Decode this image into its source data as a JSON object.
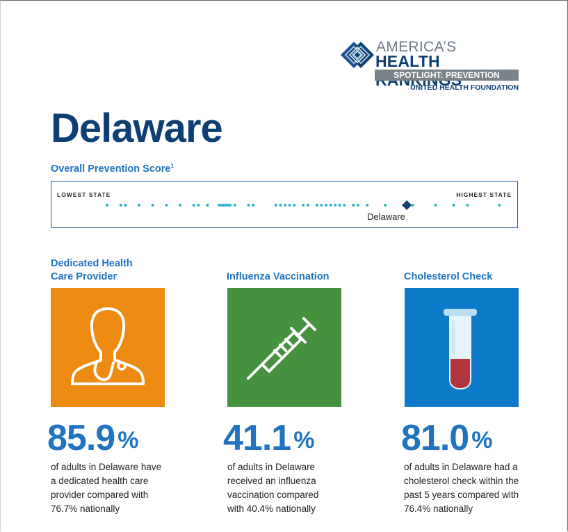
{
  "logo": {
    "line1": "AMERICA’S",
    "line2": "HEALTH RANKINGS",
    "registered": "®",
    "line3": "SPOTLIGHT: PREVENTION",
    "line4": "UNITED HEALTH FOUNDATION",
    "icon": "diamond-logo-icon"
  },
  "title": "Delaware",
  "score": {
    "label": "Overall Prevention Score",
    "footnote": "1",
    "lowest_label": "LOWEST STATE",
    "highest_label": "HIGHEST STATE",
    "state_name": "Delaware",
    "state_position": 0.767,
    "dot_positions": [
      0.11,
      0.14,
      0.15,
      0.18,
      0.21,
      0.24,
      0.27,
      0.3,
      0.31,
      0.33,
      0.355,
      0.36,
      0.365,
      0.37,
      0.375,
      0.38,
      0.39,
      0.42,
      0.43,
      0.48,
      0.49,
      0.5,
      0.51,
      0.52,
      0.54,
      0.55,
      0.57,
      0.58,
      0.59,
      0.6,
      0.61,
      0.62,
      0.63,
      0.65,
      0.66,
      0.68,
      0.72,
      0.76,
      0.78,
      0.83,
      0.87,
      0.9,
      0.97
    ],
    "dot_color": "#2ab3c7",
    "marker_color": "#163e70"
  },
  "metrics": [
    {
      "title_line1": "Dedicated Health",
      "title_line2": "Care Provider",
      "icon": "doctor-icon",
      "tile_color": "#ec8a12",
      "value": "85.9",
      "unit": "%",
      "desc": [
        "of adults in Delaware have",
        "a dedicated health care",
        "provider compared with",
        "76.7% nationally"
      ]
    },
    {
      "title_line1": "",
      "title_line2": "Influenza Vaccination",
      "icon": "syringe-icon",
      "tile_color": "#46913d",
      "value": "41.1",
      "unit": "%",
      "desc": [
        "of adults in Delaware",
        "received an influenza",
        "vaccination compared",
        "with 40.4% nationally"
      ]
    },
    {
      "title_line1": "",
      "title_line2": "Cholesterol Check",
      "icon": "test-tube-icon",
      "tile_color": "#0d7ac7",
      "value": "81.0",
      "unit": "%",
      "desc": [
        "of adults in Delaware had a",
        "cholesterol check within the",
        "past 5 years compared with",
        "76.4% nationally"
      ]
    }
  ]
}
